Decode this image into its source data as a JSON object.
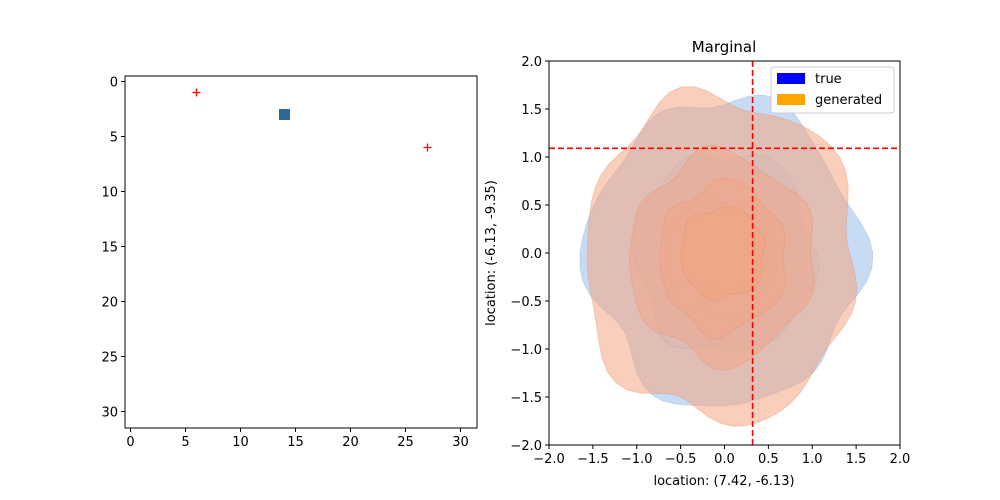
{
  "chart_data": [
    {
      "type": "scatter",
      "panel": "left",
      "title": "",
      "xlabel": "",
      "ylabel": "",
      "xlim": [
        -0.5,
        31.5
      ],
      "ylim": [
        31.5,
        -0.5
      ],
      "y_inverted": true,
      "xticks": [
        0,
        5,
        10,
        15,
        20,
        25,
        30
      ],
      "yticks": [
        0,
        5,
        10,
        15,
        20,
        25,
        30
      ],
      "markers": [
        {
          "name": "plus",
          "x": 6,
          "y": 1,
          "color": "#ff0000"
        },
        {
          "name": "plus",
          "x": 27,
          "y": 6,
          "color": "#ff0000"
        },
        {
          "name": "square",
          "x": 14,
          "y": 3,
          "color": "#31688e"
        }
      ]
    },
    {
      "type": "area",
      "panel": "right",
      "title": "Marginal",
      "xlabel": "location: (7.42, -6.13)",
      "ylabel": "location: (-6.13, -9.35)",
      "xlim": [
        -2.0,
        2.0
      ],
      "ylim": [
        -2.0,
        2.0
      ],
      "xticks": [
        -2.0,
        -1.5,
        -1.0,
        -0.5,
        0.0,
        0.5,
        1.0,
        1.5,
        2.0
      ],
      "yticks": [
        -2.0,
        -1.5,
        -1.0,
        -0.5,
        0.0,
        0.5,
        1.0,
        1.5,
        2.0
      ],
      "tick_labels": [
        "−2.0",
        "−1.5",
        "−1.0",
        "−0.5",
        "0.0",
        "0.5",
        "1.0",
        "1.5",
        "2.0"
      ],
      "reference_lines": {
        "vertical_x": 0.32,
        "horizontal_y": 1.09,
        "color": "#ff0000"
      },
      "legend": {
        "placement": "top-right",
        "entries": [
          {
            "label": "true",
            "color": "#0000ff"
          },
          {
            "label": "generated",
            "color": "#ffa500"
          }
        ]
      },
      "series": [
        {
          "name": "true",
          "fill": "#a9c9ee",
          "levels": [
            {
              "cx": 0.0,
              "cy": 0.0,
              "rx": 1.55,
              "ry": 1.6,
              "opacity": 0.65
            },
            {
              "cx": 0.0,
              "cy": 0.0,
              "rx": 1.02,
              "ry": 1.05,
              "opacity": 0.35
            },
            {
              "cx": -0.05,
              "cy": -0.05,
              "rx": 0.62,
              "ry": 0.62,
              "opacity": 0.35
            },
            {
              "cx": 0.0,
              "cy": 0.05,
              "rx": 0.5,
              "ry": 0.45,
              "opacity": 0.4
            }
          ]
        },
        {
          "name": "generated",
          "fill": "#f4a582",
          "levels": [
            {
              "cx": -0.05,
              "cy": -0.05,
              "rx": 1.55,
              "ry": 1.7,
              "opacity": 0.55
            },
            {
              "cx": -0.03,
              "cy": -0.05,
              "rx": 1.05,
              "ry": 1.08,
              "opacity": 0.45
            },
            {
              "cx": -0.02,
              "cy": -0.05,
              "rx": 0.72,
              "ry": 0.78,
              "opacity": 0.45
            },
            {
              "cx": -0.02,
              "cy": 0.0,
              "rx": 0.48,
              "ry": 0.48,
              "opacity": 0.45
            }
          ]
        }
      ]
    }
  ]
}
